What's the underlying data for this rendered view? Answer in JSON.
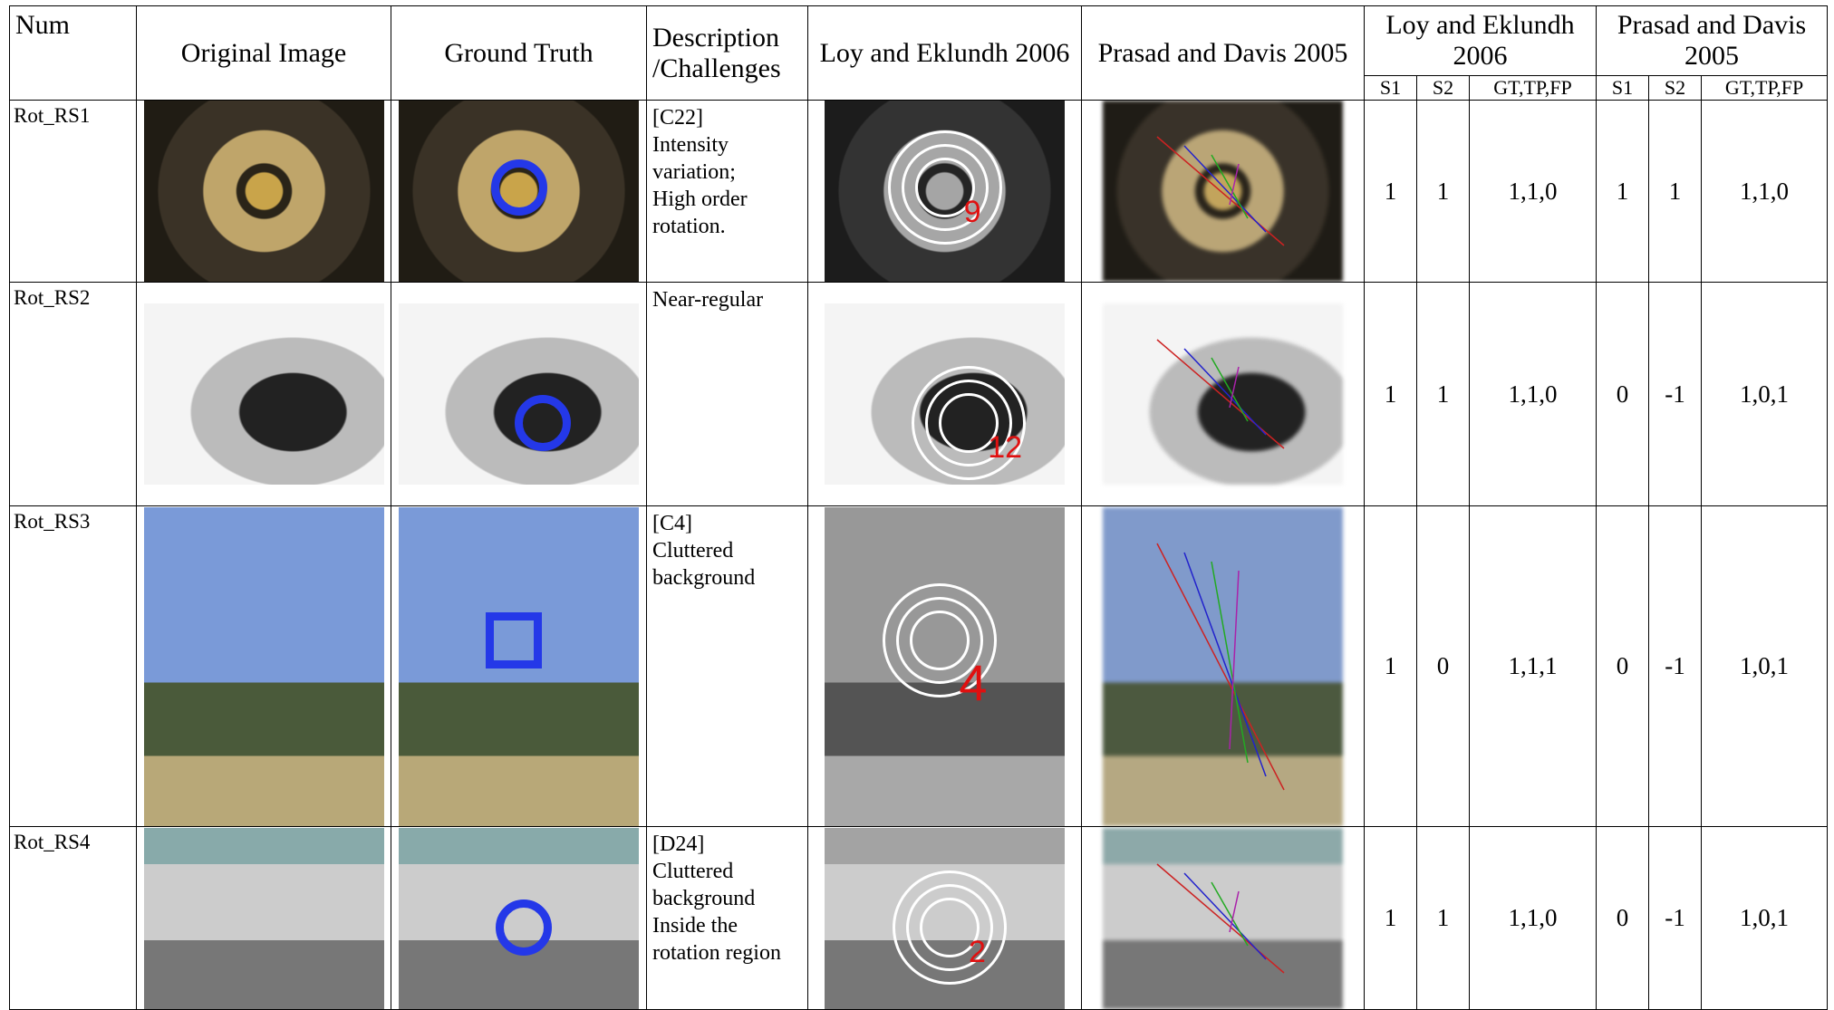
{
  "header": {
    "num": "Num",
    "original": "Original Image",
    "ground_truth": "Ground Truth",
    "description": "Description /Challenges",
    "loy": "Loy and Eklundh 2006",
    "prasad": "Prasad and Davis 2005",
    "loy_group": "Loy and Eklundh 2006",
    "prasad_group": "Prasad and Davis 2005",
    "sub": [
      "S1",
      "S2",
      "GT,TP,FP",
      "S1",
      "S2",
      "GT,TP,FP"
    ]
  },
  "rows": [
    {
      "id": "Rot_RS1",
      "description": [
        "[C22]",
        "Intensity variation;",
        "High order rotation."
      ],
      "loy_label": "9",
      "loy": [
        1,
        1,
        "1,1,0"
      ],
      "prasad": [
        1,
        1,
        "1,1,0"
      ]
    },
    {
      "id": "Rot_RS2",
      "description": [
        "Near-regular"
      ],
      "loy_label": "12",
      "loy": [
        1,
        1,
        "1,1,0"
      ],
      "prasad": [
        0,
        -1,
        "1,0,1"
      ]
    },
    {
      "id": "Rot_RS3",
      "description": [
        "[C4]",
        "Cluttered background"
      ],
      "loy_label": "4",
      "loy": [
        1,
        0,
        "1,1,1"
      ],
      "prasad": [
        0,
        -1,
        "1,0,1"
      ]
    },
    {
      "id": "Rot_RS4",
      "description": [
        "[D24]",
        "Cluttered background",
        "Inside the rotation region"
      ],
      "loy_label": "2",
      "loy": [
        1,
        1,
        "1,1,0"
      ],
      "prasad": [
        0,
        -1,
        "1,0,1"
      ]
    }
  ]
}
